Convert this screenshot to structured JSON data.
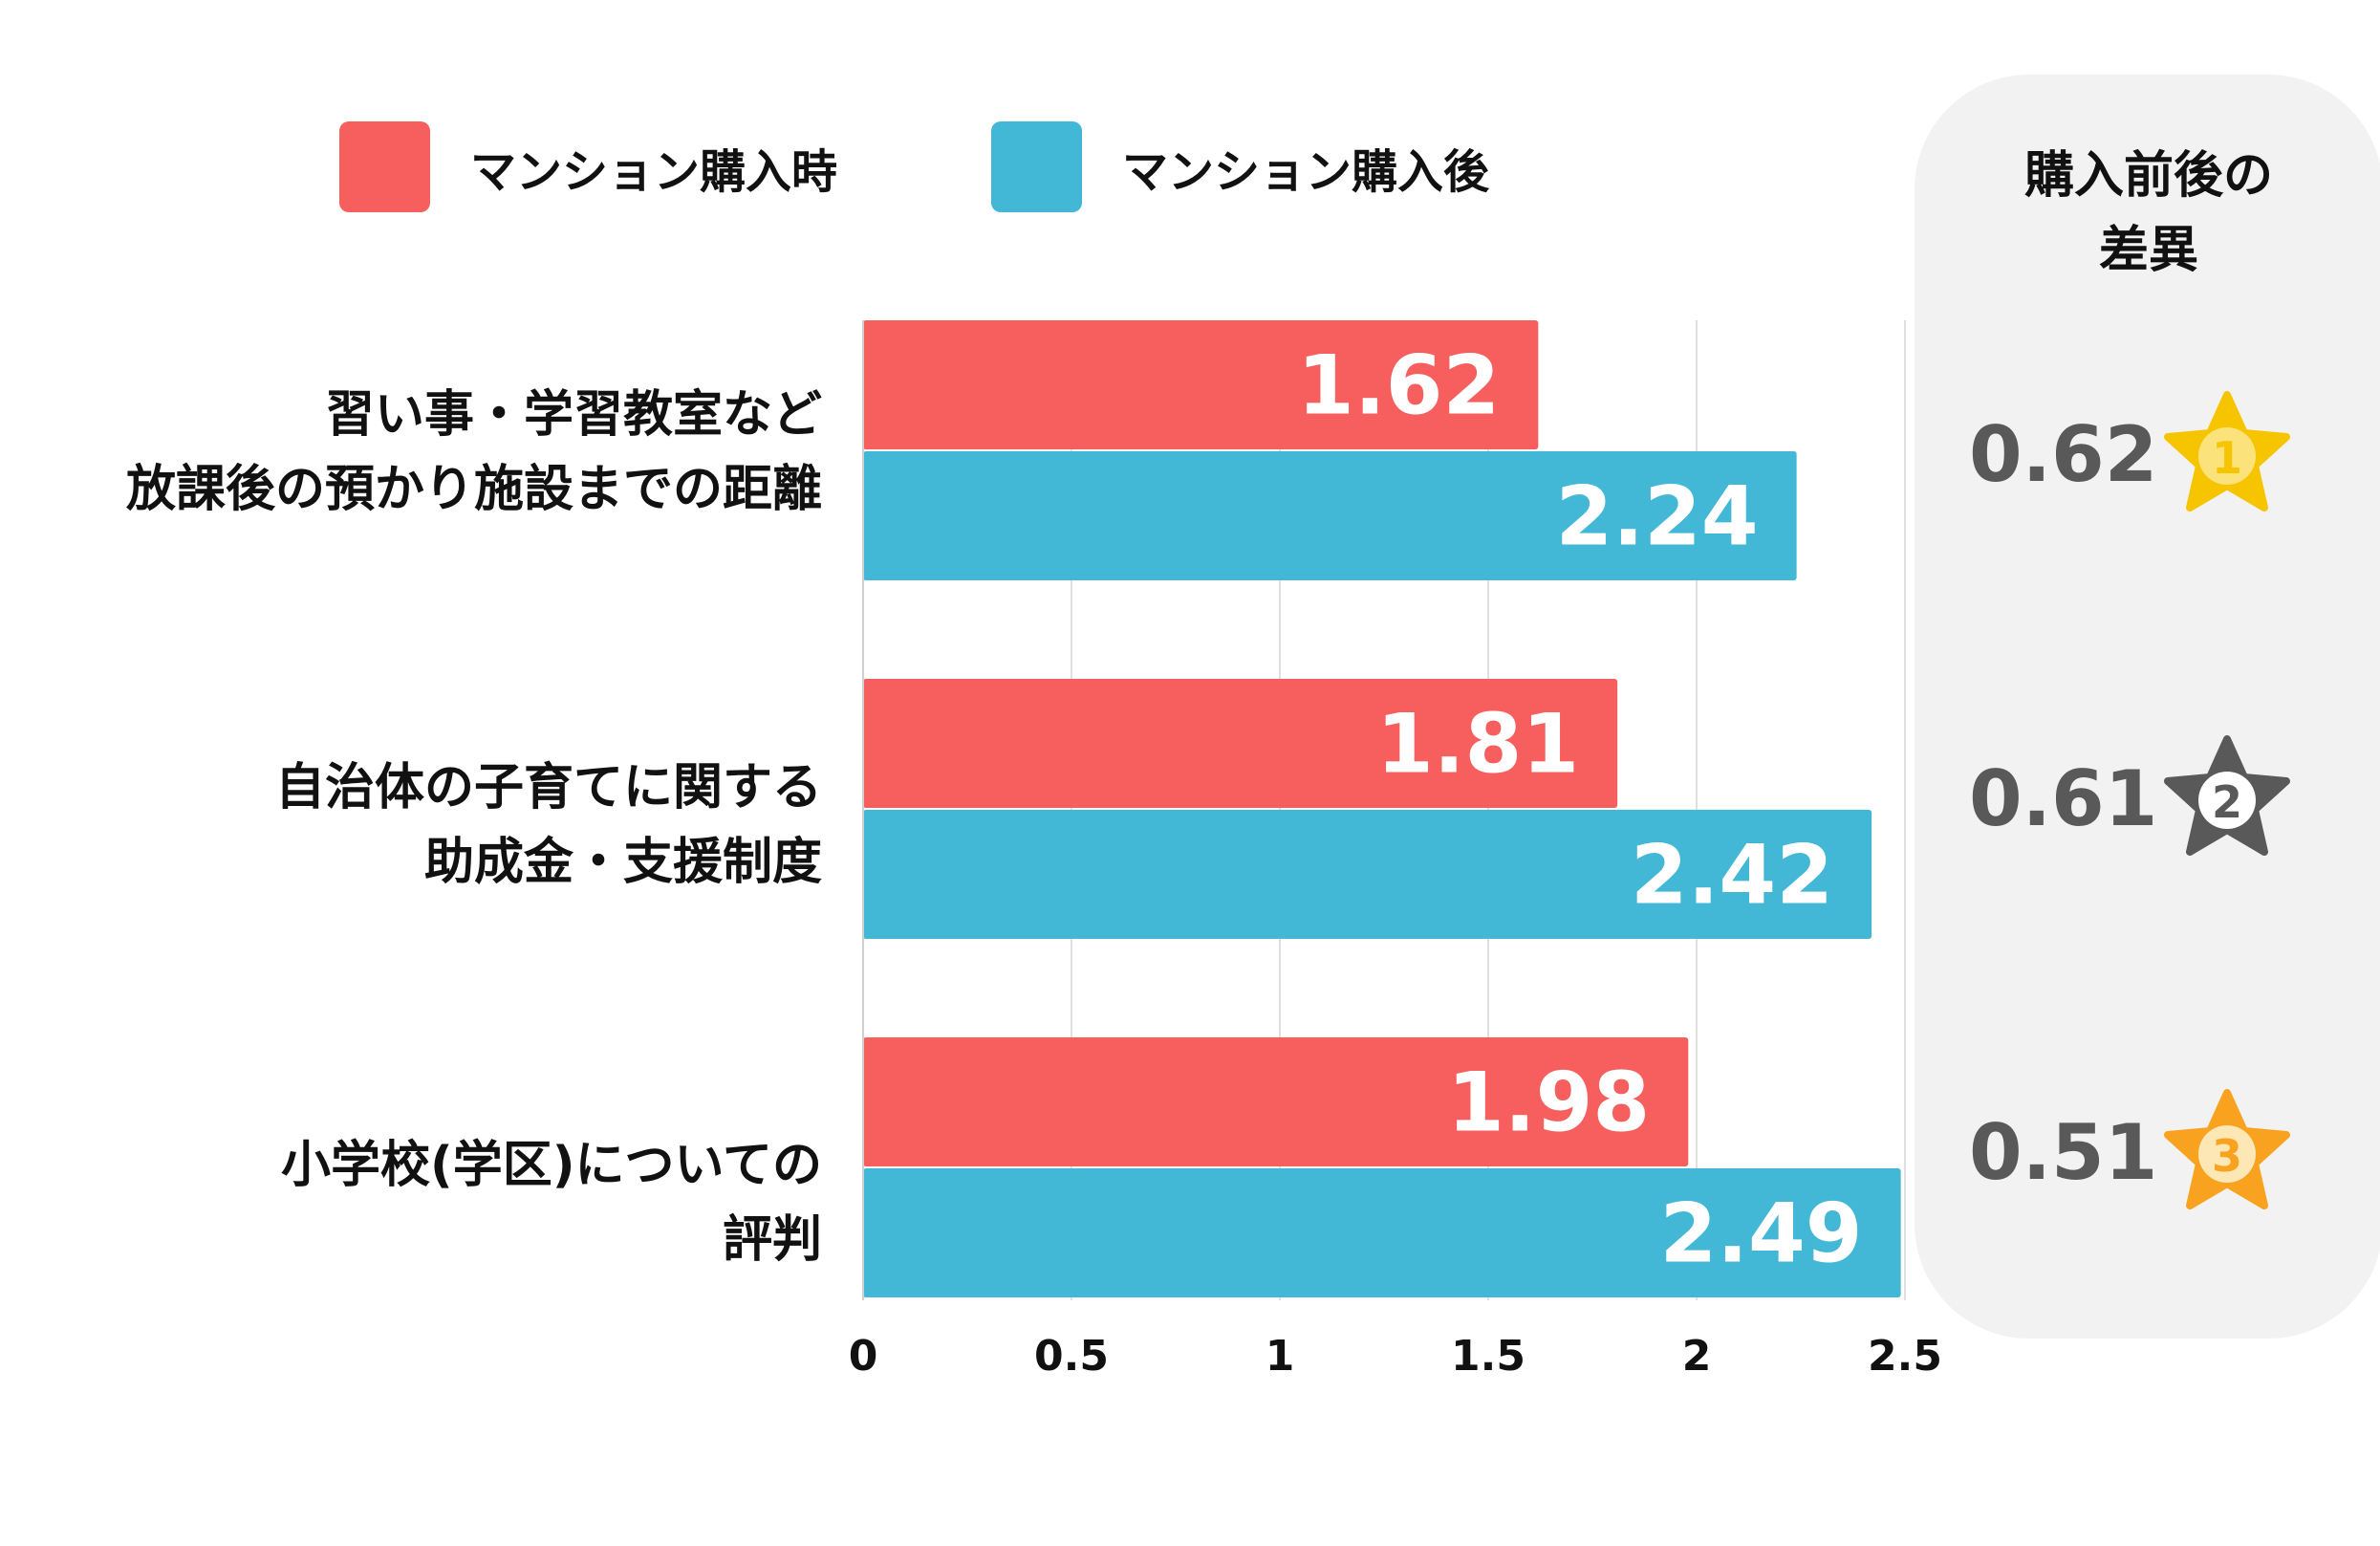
{
  "legend": [
    {
      "label": "マンション購入時",
      "color": "#f75f5f"
    },
    {
      "label": "マンション購入後",
      "color": "#42b7d6"
    }
  ],
  "categories_display": [
    [
      "習い事・学習教室など",
      "放課後の預かり施設までの距離"
    ],
    [
      "自治体の子育てに関する",
      "助成金・支援制度"
    ],
    [
      "小学校(学区)についての",
      "評判"
    ]
  ],
  "difference_panel": {
    "title_lines": [
      "購入前後の",
      "差異"
    ],
    "rows": [
      {
        "value": "0.62",
        "rank": "1",
        "star_color": "#f7c500",
        "star_icon": "star-rank-1-icon"
      },
      {
        "value": "0.61",
        "rank": "2",
        "star_color": "#595959",
        "star_icon": "star-rank-2-icon"
      },
      {
        "value": "0.51",
        "rank": "3",
        "star_color": "#f8a21f",
        "star_icon": "star-rank-3-icon"
      }
    ]
  },
  "chart_data": {
    "type": "bar",
    "orientation": "horizontal",
    "categories": [
      "習い事・学習教室など放課後の預かり施設までの距離",
      "自治体の子育てに関する助成金・支援制度",
      "小学校(学区)についての評判"
    ],
    "series": [
      {
        "name": "マンション購入時",
        "color": "#f75f5f",
        "values": [
          1.62,
          1.81,
          1.98
        ],
        "labels": [
          "1.62",
          "1.81",
          "1.98"
        ]
      },
      {
        "name": "マンション購入後",
        "color": "#42b7d6",
        "values": [
          2.24,
          2.42,
          2.49
        ],
        "labels": [
          "2.24",
          "2.42",
          "2.49"
        ]
      }
    ],
    "xlim": [
      0,
      2.5
    ],
    "ticks": [
      0,
      0.5,
      1,
      1.5,
      2,
      2.5
    ],
    "tick_labels": [
      "0",
      "0.5",
      "1",
      "1.5",
      "2",
      "2.5"
    ],
    "grid": true,
    "legend_position": "top"
  }
}
